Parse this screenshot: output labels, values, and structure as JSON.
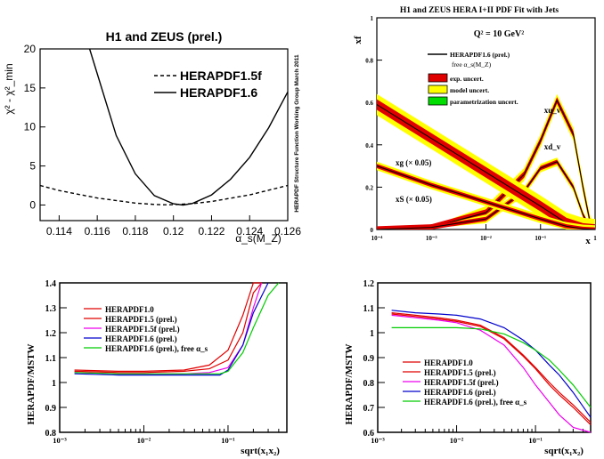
{
  "chart_data": [
    {
      "type": "line",
      "title": "H1 and ZEUS (prel.)",
      "xlabel": "α_s(M_Z)",
      "ylabel": "χ² - χ²_min",
      "xlim": [
        0.113,
        0.126
      ],
      "ylim": [
        -2,
        20
      ],
      "xticks": [
        "0.114",
        "0.116",
        "0.118",
        "0.12",
        "0.122",
        "0.124",
        "0.126"
      ],
      "yticks": [
        "0",
        "5",
        "10",
        "15",
        "20"
      ],
      "side_text": "HERAPDF Structure Function Working Group    March 2011",
      "series": [
        {
          "name": "HERAPDF1.5f",
          "style": "dashed",
          "x": [
            0.113,
            0.114,
            0.116,
            0.118,
            0.119,
            0.1195,
            0.12,
            0.121,
            0.122,
            0.124,
            0.126
          ],
          "y": [
            2.5,
            1.85,
            0.9,
            0.25,
            0.08,
            0.03,
            0.04,
            0.18,
            0.45,
            1.3,
            2.5
          ]
        },
        {
          "name": "HERAPDF1.6",
          "style": "solid",
          "x": [
            0.1156,
            0.117,
            0.118,
            0.119,
            0.12,
            0.1205,
            0.121,
            0.122,
            0.123,
            0.124,
            0.125,
            0.126
          ],
          "y": [
            20,
            8.9,
            4.0,
            1.2,
            0.15,
            0.0,
            0.2,
            1.3,
            3.3,
            6.1,
            9.9,
            14.5
          ]
        }
      ]
    },
    {
      "type": "line",
      "title": "H1 and ZEUS HERA I+II PDF Fit with Jets",
      "annotation": "Q² = 10 GeV²",
      "xlabel": "x",
      "ylabel": "xf",
      "xscale": "log",
      "xlim": [
        0.0001,
        1
      ],
      "ylim": [
        0,
        1
      ],
      "xticks": [
        "10⁻⁴",
        "10⁻³",
        "10⁻²",
        "10⁻¹",
        "1"
      ],
      "yticks": [
        "0",
        "0.2",
        "0.4",
        "0.6",
        "0.8",
        "1"
      ],
      "legend": [
        "HERAPDF1.6 (prel.)",
        "free α_s(M_Z)",
        "exp. uncert.",
        "model uncert.",
        "parametrization uncert."
      ],
      "curve_labels": [
        "xu_v",
        "xd_v",
        "xg (× 0.05)",
        "xS (× 0.05)"
      ],
      "colors": {
        "exp": "#e00000",
        "model": "#ffff00",
        "param": "#00dd00"
      },
      "series": [
        {
          "name": "xu_v",
          "x": [
            0.0001,
            0.001,
            0.01,
            0.05,
            0.1,
            0.2,
            0.4,
            0.6,
            0.8,
            1.0
          ],
          "y": [
            0.0,
            0.01,
            0.08,
            0.26,
            0.42,
            0.61,
            0.45,
            0.2,
            0.04,
            0.0
          ]
        },
        {
          "name": "xd_v",
          "x": [
            0.0001,
            0.001,
            0.01,
            0.05,
            0.1,
            0.2,
            0.4,
            0.6,
            0.8,
            1.0
          ],
          "y": [
            0.0,
            0.01,
            0.05,
            0.18,
            0.29,
            0.32,
            0.2,
            0.07,
            0.01,
            0.0
          ]
        },
        {
          "name": "xg (× 0.05)",
          "x": [
            0.0001,
            0.001,
            0.01,
            0.1,
            0.3,
            0.6,
            1.0
          ],
          "y": [
            0.59,
            0.43,
            0.27,
            0.11,
            0.03,
            0.005,
            0.0
          ]
        },
        {
          "name": "xS (× 0.05)",
          "x": [
            0.0001,
            0.001,
            0.01,
            0.1,
            0.3,
            0.6,
            1.0
          ],
          "y": [
            0.3,
            0.21,
            0.13,
            0.05,
            0.015,
            0.003,
            0.0
          ]
        }
      ]
    },
    {
      "type": "line",
      "xlabel": "sqrt(x₁x₂)",
      "ylabel": "HERAPDF/MSTW",
      "xscale": "log",
      "xlim": [
        0.001,
        0.5
      ],
      "ylim": [
        0.8,
        1.4
      ],
      "xticks": [
        "10⁻³",
        "10⁻²",
        "10⁻¹"
      ],
      "yticks": [
        "0.8",
        "0.9",
        "1",
        "1.1",
        "1.2",
        "1.3",
        "1.4"
      ],
      "series": [
        {
          "name": "HERAPDF1.0",
          "color": "#e00000",
          "x": [
            0.0015,
            0.005,
            0.01,
            0.03,
            0.06,
            0.1,
            0.15,
            0.2,
            0.25
          ],
          "y": [
            1.05,
            1.045,
            1.045,
            1.05,
            1.07,
            1.13,
            1.27,
            1.42,
            1.5
          ]
        },
        {
          "name": "HERAPDF1.5 (prel.)",
          "color": "#e00000",
          "x": [
            0.0015,
            0.005,
            0.01,
            0.03,
            0.06,
            0.1,
            0.15,
            0.2,
            0.25
          ],
          "y": [
            1.045,
            1.04,
            1.04,
            1.045,
            1.055,
            1.09,
            1.2,
            1.36,
            1.5
          ]
        },
        {
          "name": "HERAPDF1.5f (prel.)",
          "color": "#ee00ee",
          "x": [
            0.0015,
            0.005,
            0.01,
            0.03,
            0.06,
            0.1,
            0.15,
            0.2,
            0.25
          ],
          "y": [
            1.04,
            1.035,
            1.035,
            1.035,
            1.04,
            1.06,
            1.15,
            1.3,
            1.45
          ]
        },
        {
          "name": "HERAPDF1.6 (prel.)",
          "color": "#0000cc",
          "x": [
            0.0015,
            0.005,
            0.01,
            0.03,
            0.06,
            0.08,
            0.1,
            0.15,
            0.2,
            0.3
          ],
          "y": [
            1.035,
            1.03,
            1.03,
            1.03,
            1.03,
            1.03,
            1.05,
            1.15,
            1.28,
            1.45
          ]
        },
        {
          "name": "HERAPDF1.6 (prel.), free α_s",
          "color": "#00cc00",
          "x": [
            0.0015,
            0.005,
            0.01,
            0.03,
            0.06,
            0.08,
            0.1,
            0.15,
            0.2,
            0.3,
            0.4
          ],
          "y": [
            1.04,
            1.035,
            1.035,
            1.035,
            1.035,
            1.035,
            1.045,
            1.12,
            1.22,
            1.35,
            1.45
          ]
        }
      ]
    },
    {
      "type": "line",
      "xlabel": "sqrt(x₁x₂)",
      "ylabel": "HERAPDF/MSTW",
      "xscale": "log",
      "xlim": [
        0.001,
        0.5
      ],
      "ylim": [
        0.6,
        1.2
      ],
      "xticks": [
        "10⁻³",
        "10⁻²",
        "10⁻¹"
      ],
      "yticks": [
        "0.6",
        "0.7",
        "0.8",
        "0.9",
        "1",
        "1.1",
        "1.2"
      ],
      "series": [
        {
          "name": "HERAPDF1.0",
          "color": "#e00000",
          "x": [
            0.0015,
            0.003,
            0.006,
            0.01,
            0.02,
            0.04,
            0.07,
            0.1,
            0.15,
            0.2,
            0.3,
            0.5
          ],
          "y": [
            1.08,
            1.07,
            1.06,
            1.05,
            1.03,
            0.98,
            0.91,
            0.86,
            0.8,
            0.76,
            0.71,
            0.64
          ]
        },
        {
          "name": "HERAPDF1.5 (prel.)",
          "color": "#e00000",
          "x": [
            0.0015,
            0.003,
            0.006,
            0.01,
            0.02,
            0.04,
            0.07,
            0.1,
            0.15,
            0.2,
            0.3,
            0.5
          ],
          "y": [
            1.075,
            1.065,
            1.055,
            1.045,
            1.025,
            0.975,
            0.905,
            0.855,
            0.79,
            0.75,
            0.7,
            0.63
          ]
        },
        {
          "name": "HERAPDF1.5f (prel.)",
          "color": "#ee00ee",
          "x": [
            0.0015,
            0.003,
            0.006,
            0.01,
            0.02,
            0.04,
            0.07,
            0.1,
            0.15,
            0.2,
            0.3,
            0.5
          ],
          "y": [
            1.07,
            1.06,
            1.05,
            1.04,
            1.01,
            0.95,
            0.86,
            0.79,
            0.72,
            0.67,
            0.62,
            0.6
          ]
        },
        {
          "name": "HERAPDF1.6 (prel.)",
          "color": "#0000cc",
          "x": [
            0.0015,
            0.003,
            0.006,
            0.01,
            0.02,
            0.04,
            0.07,
            0.1,
            0.15,
            0.2,
            0.3,
            0.5
          ],
          "y": [
            1.09,
            1.08,
            1.075,
            1.07,
            1.055,
            1.02,
            0.97,
            0.93,
            0.87,
            0.83,
            0.76,
            0.66
          ]
        },
        {
          "name": "HERAPDF1.6 (prel.), free α_s",
          "color": "#00cc00",
          "x": [
            0.0015,
            0.003,
            0.006,
            0.01,
            0.02,
            0.04,
            0.07,
            0.1,
            0.15,
            0.2,
            0.3,
            0.5
          ],
          "y": [
            1.02,
            1.02,
            1.02,
            1.02,
            1.015,
            0.995,
            0.96,
            0.93,
            0.89,
            0.85,
            0.79,
            0.7
          ]
        }
      ]
    }
  ]
}
